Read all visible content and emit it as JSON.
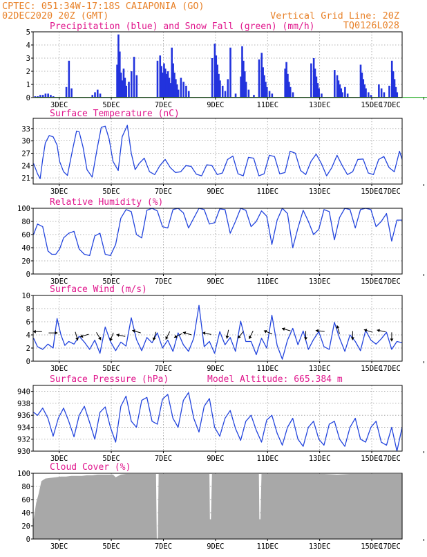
{
  "header": {
    "line1": "CPTEC:   051:34W-17:18S   CAIAPONIA (GO)",
    "line2_left": "02DEC2020 20Z (GMT)",
    "line2_right": "Vertical Grid Line: 20Z",
    "code": "TQ0126L028"
  },
  "colors": {
    "header": "#e8822a",
    "title": "#e0168c",
    "precip": "#2233dd",
    "snow": "#22aa22",
    "line": "#2244dd",
    "cloud": "#a8a8a8",
    "arrow": "#000000"
  },
  "x_axis": {
    "start_day": 2,
    "start_hour": 20,
    "end_day": 17,
    "end_hour": 0,
    "tick_labels": [
      "3DEC",
      "5DEC",
      "7DEC",
      "9DEC",
      "11DEC",
      "13DEC",
      "15DEC",
      "17DEC"
    ]
  },
  "chart_data": [
    {
      "id": "precip",
      "type": "bar",
      "title": "Precipitation (blue) and Snow Fall (green) (mm/h)",
      "ylim": [
        0,
        5
      ],
      "yticks": [
        "0",
        "1",
        "2",
        "3",
        "4",
        "5"
      ],
      "series": [
        {
          "name": "Precipitation",
          "x": [
            2.9,
            3.0,
            3.1,
            3.2,
            3.3,
            3.4,
            3.5,
            3.6,
            4.1,
            4.2,
            4.3,
            5.1,
            5.2,
            5.3,
            5.4,
            6.05,
            6.1,
            6.15,
            6.2,
            6.25,
            6.3,
            6.35,
            6.4,
            6.5,
            6.6,
            6.7,
            6.8,
            7.6,
            7.7,
            7.75,
            7.8,
            7.85,
            7.9,
            7.95,
            8.0,
            8.05,
            8.1,
            8.15,
            8.2,
            8.25,
            8.3,
            8.35,
            8.4,
            8.5,
            8.6,
            8.7,
            8.8,
            9.7,
            9.8,
            9.85,
            9.9,
            9.95,
            10.0,
            10.1,
            10.2,
            10.3,
            10.4,
            10.6,
            10.8,
            10.85,
            10.9,
            10.95,
            11.0,
            11.1,
            11.3,
            11.5,
            11.6,
            11.65,
            11.7,
            11.75,
            11.8,
            11.9,
            12.0,
            12.5,
            12.55,
            12.6,
            12.65,
            12.7,
            12.8,
            13.5,
            13.6,
            13.65,
            13.7,
            13.75,
            13.8,
            13.9,
            14.4,
            14.5,
            14.55,
            14.6,
            14.65,
            14.7,
            14.8,
            14.9,
            15.4,
            15.45,
            15.5,
            15.55,
            15.6,
            15.7,
            15.8,
            16.1,
            16.2,
            16.3,
            16.5,
            16.6,
            16.65,
            16.7,
            16.75,
            16.8
          ],
          "values": [
            0.1,
            0.1,
            0.2,
            0.2,
            0.3,
            0.3,
            0.2,
            0.1,
            0.8,
            2.8,
            0.7,
            0.2,
            0.4,
            0.6,
            0.3,
            2.5,
            4.8,
            3.5,
            1.9,
            1.3,
            2.2,
            1.5,
            0.9,
            1.2,
            2.0,
            3.1,
            1.7,
            2.8,
            3.2,
            2.4,
            1.9,
            2.6,
            2.2,
            1.8,
            2.0,
            1.5,
            1.1,
            3.8,
            2.6,
            1.9,
            1.4,
            1.0,
            0.6,
            1.5,
            1.2,
            0.9,
            0.5,
            3.0,
            4.1,
            3.2,
            2.5,
            1.8,
            1.3,
            0.9,
            0.5,
            1.4,
            3.8,
            0.3,
            1.6,
            3.9,
            2.8,
            2.0,
            1.2,
            0.6,
            0.2,
            2.9,
            3.4,
            2.3,
            1.7,
            1.2,
            0.8,
            0.5,
            0.3,
            2.2,
            2.7,
            1.8,
            1.2,
            0.8,
            0.4,
            2.6,
            3.0,
            2.2,
            1.6,
            1.1,
            0.7,
            0.3,
            2.1,
            1.7,
            1.3,
            1.0,
            0.7,
            0.4,
            0.8,
            0.3,
            2.5,
            1.9,
            1.4,
            1.0,
            0.7,
            0.4,
            0.2,
            1.0,
            0.7,
            0.4,
            0.9,
            2.8,
            2.0,
            1.4,
            0.8,
            0.4
          ]
        },
        {
          "name": "Snow Fall",
          "x": [
            2.9,
            16.9
          ],
          "values": [
            0.05,
            0.05
          ]
        }
      ]
    },
    {
      "id": "temp",
      "type": "line",
      "title": "Surface Temperature (nC)",
      "ylim": [
        19.5,
        35.5
      ],
      "yticks": [
        21,
        24,
        27,
        30,
        33
      ],
      "x": [
        2.85,
        3.0,
        3.1,
        3.2,
        3.3,
        3.45,
        3.6,
        3.75,
        3.85,
        4.0,
        4.15,
        4.35,
        4.5,
        4.6,
        4.75,
        4.9,
        5.1,
        5.3,
        5.45,
        5.6,
        5.75,
        5.9,
        6.1,
        6.25,
        6.45,
        6.6,
        6.75,
        6.9,
        7.1,
        7.3,
        7.5,
        7.7,
        7.9,
        8.1,
        8.3,
        8.5,
        8.7,
        8.9,
        9.1,
        9.3,
        9.5,
        9.7,
        9.9,
        10.1,
        10.3,
        10.5,
        10.7,
        10.9,
        11.1,
        11.3,
        11.5,
        11.7,
        11.9,
        12.1,
        12.3,
        12.5,
        12.7,
        12.9,
        13.1,
        13.3,
        13.5,
        13.7,
        13.9,
        14.1,
        14.3,
        14.5,
        14.7,
        14.9,
        15.1,
        15.3,
        15.5,
        15.7,
        15.9,
        16.1,
        16.3,
        16.5,
        16.7,
        16.9,
        17.0
      ],
      "values": [
        24.5,
        22.0,
        20.8,
        25.5,
        29.5,
        31.3,
        31.0,
        29.0,
        25.0,
        22.5,
        21.6,
        28.0,
        32.4,
        32.2,
        28.5,
        23.0,
        21.2,
        28.5,
        33.3,
        33.6,
        30.5,
        25.0,
        22.8,
        31.0,
        33.8,
        27.0,
        23.0,
        24.5,
        25.8,
        22.5,
        21.8,
        24.0,
        25.5,
        23.5,
        22.3,
        22.5,
        24.0,
        23.8,
        21.9,
        21.5,
        24.2,
        24.0,
        21.8,
        22.2,
        25.5,
        26.3,
        22.0,
        21.5,
        26.0,
        25.8,
        21.5,
        22.0,
        26.5,
        26.2,
        22.0,
        22.3,
        27.5,
        27.0,
        22.8,
        21.8,
        25.0,
        26.8,
        24.5,
        21.5,
        23.5,
        26.5,
        24.0,
        21.8,
        22.5,
        25.5,
        25.6,
        22.2,
        21.8,
        25.5,
        26.2,
        23.5,
        22.5,
        27.5,
        25.5
      ]
    },
    {
      "id": "rh",
      "type": "line",
      "title": "Relative Humidity (%)",
      "ylim": [
        0,
        100
      ],
      "yticks": [
        0,
        20,
        40,
        60,
        80,
        100
      ],
      "x": [
        2.85,
        3.0,
        3.2,
        3.4,
        3.55,
        3.7,
        3.85,
        4.0,
        4.2,
        4.4,
        4.6,
        4.8,
        5.0,
        5.2,
        5.4,
        5.6,
        5.8,
        6.0,
        6.2,
        6.4,
        6.6,
        6.8,
        7.0,
        7.2,
        7.4,
        7.6,
        7.8,
        8.0,
        8.2,
        8.4,
        8.6,
        8.8,
        9.0,
        9.2,
        9.4,
        9.6,
        9.8,
        10.0,
        10.2,
        10.4,
        10.6,
        10.8,
        11.0,
        11.2,
        11.4,
        11.6,
        11.8,
        12.0,
        12.2,
        12.4,
        12.6,
        12.8,
        13.0,
        13.2,
        13.4,
        13.6,
        13.8,
        14.0,
        14.2,
        14.4,
        14.6,
        14.8,
        15.0,
        15.2,
        15.4,
        15.6,
        15.8,
        16.0,
        16.2,
        16.4,
        16.6,
        16.8,
        17.0
      ],
      "values": [
        60,
        76,
        72,
        35,
        30,
        30,
        38,
        55,
        62,
        65,
        38,
        30,
        28,
        58,
        62,
        30,
        28,
        45,
        85,
        98,
        95,
        60,
        55,
        97,
        100,
        96,
        72,
        70,
        98,
        100,
        93,
        70,
        85,
        100,
        98,
        76,
        78,
        99,
        98,
        62,
        80,
        100,
        97,
        72,
        80,
        96,
        88,
        45,
        82,
        100,
        92,
        40,
        70,
        97,
        80,
        60,
        68,
        98,
        95,
        52,
        86,
        100,
        98,
        70,
        98,
        100,
        98,
        72,
        80,
        92,
        50,
        82,
        82
      ]
    },
    {
      "id": "wind",
      "type": "line",
      "title": "Surface Wind (m/s)",
      "ylim": [
        0,
        10
      ],
      "yticks": [
        0,
        2,
        4,
        6,
        8,
        10
      ],
      "x": [
        2.85,
        3.0,
        3.2,
        3.4,
        3.6,
        3.75,
        3.9,
        4.05,
        4.2,
        4.4,
        4.6,
        4.8,
        5.0,
        5.2,
        5.4,
        5.6,
        5.8,
        6.0,
        6.2,
        6.4,
        6.6,
        6.8,
        7.0,
        7.2,
        7.4,
        7.6,
        7.8,
        8.0,
        8.2,
        8.4,
        8.6,
        8.8,
        9.0,
        9.2,
        9.4,
        9.6,
        9.8,
        10.0,
        10.2,
        10.4,
        10.6,
        10.8,
        11.0,
        11.2,
        11.4,
        11.6,
        11.8,
        12.0,
        12.2,
        12.4,
        12.6,
        12.8,
        13.0,
        13.2,
        13.4,
        13.6,
        13.8,
        14.0,
        14.2,
        14.4,
        14.6,
        14.8,
        15.0,
        15.2,
        15.4,
        15.6,
        15.8,
        16.0,
        16.2,
        16.4,
        16.6,
        16.8,
        17.0
      ],
      "values": [
        3.5,
        2.2,
        1.8,
        2.6,
        2.0,
        6.5,
        4.0,
        2.4,
        3.0,
        2.6,
        3.8,
        2.9,
        1.8,
        3.2,
        1.2,
        5.2,
        3.0,
        1.6,
        2.9,
        2.3,
        6.6,
        3.3,
        1.6,
        3.6,
        2.8,
        4.3,
        2.0,
        3.2,
        1.5,
        4.3,
        2.5,
        1.5,
        3.5,
        8.5,
        2.2,
        3.0,
        1.2,
        4.5,
        2.5,
        3.6,
        1.5,
        6.1,
        3.0,
        3.0,
        1.0,
        3.5,
        2.0,
        7.0,
        2.4,
        0.3,
        3.2,
        5.0,
        2.5,
        4.6,
        1.8,
        3.3,
        4.5,
        2.2,
        1.8,
        5.9,
        3.5,
        1.5,
        4.0,
        3.0,
        1.6,
        4.7,
        3.2,
        2.6,
        3.4,
        4.4,
        1.8,
        3.0,
        2.8
      ],
      "arrows": [
        {
          "x": 3.0,
          "y": 4.5,
          "dx": -1,
          "dy": 0
        },
        {
          "x": 3.6,
          "y": 4.3,
          "dx": 1,
          "dy": 0
        },
        {
          "x": 4.5,
          "y": 3.8,
          "dx": 0.3,
          "dy": -1
        },
        {
          "x": 4.8,
          "y": 3.9,
          "dx": -1,
          "dy": -0.3
        },
        {
          "x": 5.35,
          "y": 3.8,
          "dx": 0.6,
          "dy": -1
        },
        {
          "x": 5.85,
          "y": 3.7,
          "dx": -0.4,
          "dy": -1
        },
        {
          "x": 6.2,
          "y": 3.9,
          "dx": -1,
          "dy": 0.2
        },
        {
          "x": 6.8,
          "y": 4.5,
          "dx": -1,
          "dy": 0.3
        },
        {
          "x": 7.5,
          "y": 3.8,
          "dx": -0.3,
          "dy": -1
        },
        {
          "x": 8.0,
          "y": 3.9,
          "dx": -0.5,
          "dy": -1
        },
        {
          "x": 8.4,
          "y": 3.9,
          "dx": -1,
          "dy": -0.5
        },
        {
          "x": 8.75,
          "y": 4.2,
          "dx": -1,
          "dy": 0.3
        },
        {
          "x": 9.5,
          "y": 4.2,
          "dx": -1,
          "dy": 0.2
        },
        {
          "x": 10.3,
          "y": 4.1,
          "dx": -0.2,
          "dy": -1
        },
        {
          "x": 10.8,
          "y": 4.0,
          "dx": -0.8,
          "dy": -1
        },
        {
          "x": 11.2,
          "y": 4.0,
          "dx": -0.5,
          "dy": -1
        },
        {
          "x": 11.85,
          "y": 4.4,
          "dx": -1,
          "dy": 0.4
        },
        {
          "x": 12.55,
          "y": 4.8,
          "dx": -1,
          "dy": 0.3
        },
        {
          "x": 13.3,
          "y": 3.9,
          "dx": 0,
          "dy": -1
        },
        {
          "x": 13.85,
          "y": 4.6,
          "dx": -1,
          "dy": 0.1
        },
        {
          "x": 14.55,
          "y": 4.8,
          "dx": -0.3,
          "dy": 1
        },
        {
          "x": 15.1,
          "y": 3.9,
          "dx": 0,
          "dy": -1
        },
        {
          "x": 15.7,
          "y": 4.6,
          "dx": -1,
          "dy": 0.3
        },
        {
          "x": 16.2,
          "y": 4.6,
          "dx": -1,
          "dy": 0.2
        },
        {
          "x": 16.6,
          "y": 3.7,
          "dx": 0,
          "dy": -1
        }
      ]
    },
    {
      "id": "pres",
      "type": "line",
      "title": "Surface Pressure (hPa)",
      "title_right": "Model Altitude: 665.384 m",
      "ylim": [
        930,
        941
      ],
      "yticks": [
        930,
        932,
        934,
        936,
        938,
        940
      ],
      "x": [
        2.85,
        3.0,
        3.2,
        3.4,
        3.6,
        3.8,
        4.0,
        4.2,
        4.4,
        4.6,
        4.8,
        5.0,
        5.2,
        5.4,
        5.6,
        5.8,
        6.0,
        6.2,
        6.4,
        6.6,
        6.8,
        7.0,
        7.2,
        7.4,
        7.6,
        7.8,
        8.0,
        8.2,
        8.4,
        8.6,
        8.8,
        9.0,
        9.2,
        9.4,
        9.6,
        9.8,
        10.0,
        10.2,
        10.4,
        10.6,
        10.8,
        11.0,
        11.2,
        11.4,
        11.6,
        11.8,
        12.0,
        12.2,
        12.4,
        12.6,
        12.8,
        13.0,
        13.2,
        13.4,
        13.6,
        13.8,
        14.0,
        14.2,
        14.4,
        14.6,
        14.8,
        15.0,
        15.2,
        15.4,
        15.6,
        15.8,
        16.0,
        16.2,
        16.4,
        16.6,
        16.8,
        17.0
      ],
      "values": [
        936.5,
        936.0,
        937.2,
        935.5,
        932.5,
        935.5,
        937.2,
        935.0,
        932.4,
        936.0,
        937.5,
        934.8,
        932.0,
        936.5,
        937.4,
        934.0,
        931.5,
        937.5,
        939.2,
        935.0,
        934.0,
        938.5,
        939.0,
        935.0,
        934.5,
        938.7,
        939.5,
        935.5,
        934.0,
        938.5,
        939.8,
        935.5,
        933.2,
        937.5,
        938.8,
        934.0,
        932.5,
        935.5,
        936.8,
        933.8,
        931.8,
        935.0,
        936.0,
        933.5,
        931.5,
        935.2,
        936.0,
        933.0,
        931.0,
        934.0,
        935.5,
        932.0,
        930.8,
        934.0,
        935.0,
        932.0,
        931.0,
        934.5,
        935.0,
        932.0,
        930.8,
        934.0,
        935.5,
        932.0,
        931.5,
        934.0,
        935.0,
        931.5,
        931.0,
        934.0,
        930.0,
        934.0
      ]
    },
    {
      "id": "cloud",
      "type": "area",
      "title": "Cloud Cover (%)",
      "ylim": [
        0,
        100
      ],
      "yticks": [
        0,
        20,
        40,
        60,
        80,
        100
      ],
      "x": [
        2.85,
        2.95,
        3.05,
        3.15,
        3.3,
        3.5,
        3.7,
        3.9,
        4.1,
        4.3,
        4.5,
        4.7,
        4.9,
        5.1,
        5.3,
        5.5,
        5.7,
        5.9,
        6.0,
        6.2,
        6.4,
        6.6,
        6.8,
        7.0,
        7.2,
        7.4,
        7.55,
        7.58,
        7.62,
        7.65,
        7.8,
        8.0,
        8.5,
        9.0,
        9.5,
        9.6,
        9.62,
        9.66,
        9.7,
        10.0,
        10.5,
        11.0,
        11.5,
        11.52,
        11.56,
        11.6,
        12.0,
        12.5,
        13.0,
        13.5,
        14.0,
        14.5,
        15.0,
        15.5,
        16.0,
        16.5,
        17.0
      ],
      "values": [
        30,
        55,
        70,
        88,
        92,
        93,
        94,
        95,
        95,
        96,
        96,
        96,
        97,
        97,
        98,
        98,
        98,
        98,
        94,
        98,
        99,
        99,
        99,
        99,
        99,
        99,
        99,
        0,
        0,
        99,
        99,
        99,
        99,
        99,
        99,
        99,
        30,
        30,
        99,
        99,
        99,
        99,
        99,
        30,
        30,
        99,
        99,
        99,
        99,
        99,
        99,
        98,
        99,
        99,
        99,
        99,
        99
      ]
    }
  ]
}
